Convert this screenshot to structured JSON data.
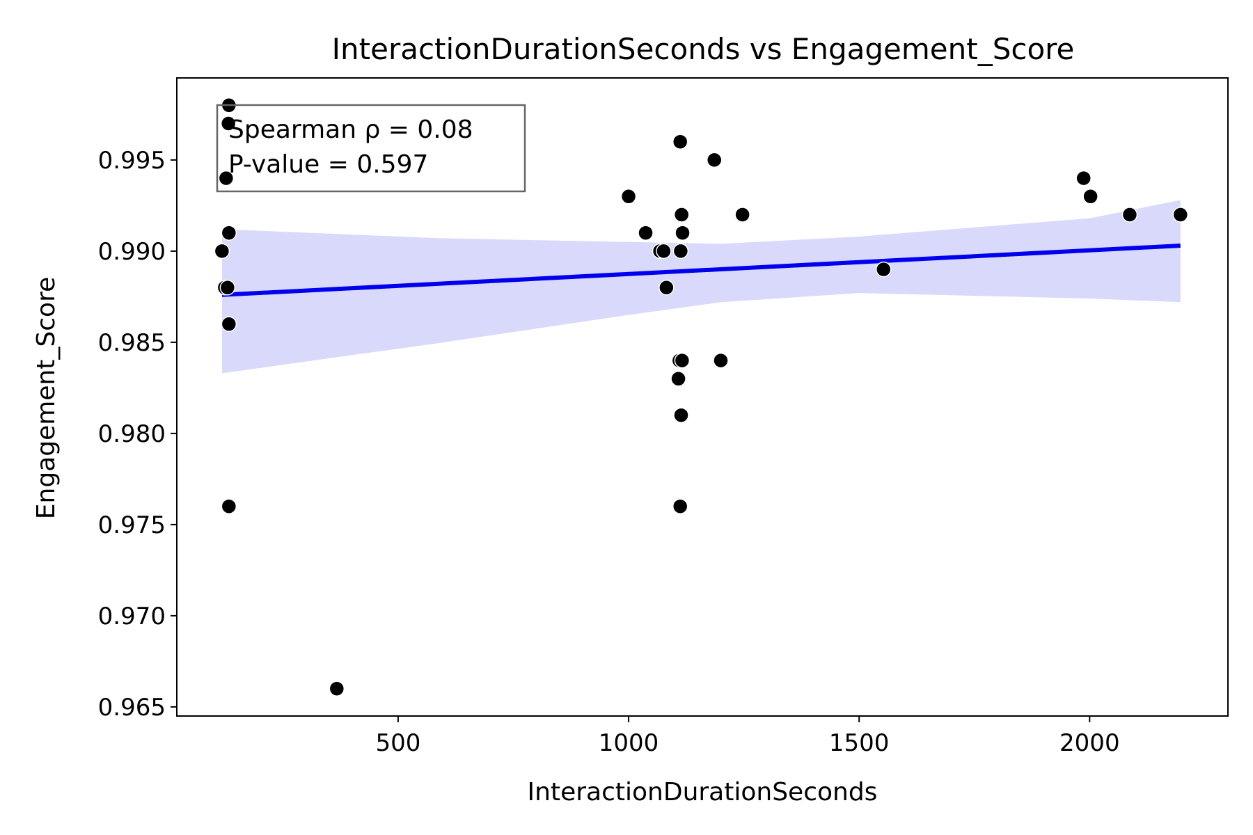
{
  "chart_data": {
    "type": "scatter",
    "title": "InteractionDurationSeconds vs Engagement_Score",
    "xlabel": "InteractionDurationSeconds",
    "ylabel": "Engagement_Score",
    "xlim": [
      20,
      2300
    ],
    "ylim": [
      0.9645,
      0.9995
    ],
    "xticks": [
      500,
      1000,
      1500,
      2000
    ],
    "yticks": [
      0.965,
      0.97,
      0.975,
      0.98,
      0.985,
      0.99,
      0.995
    ],
    "ytick_labels": [
      "0.965",
      "0.970",
      "0.975",
      "0.980",
      "0.985",
      "0.990",
      "0.995"
    ],
    "grid": false,
    "point_color": "#000000",
    "line_color": "#0000ee",
    "band_color": "#d9d9fb",
    "points": [
      {
        "x": 133,
        "y": 0.998
      },
      {
        "x": 132,
        "y": 0.997
      },
      {
        "x": 127,
        "y": 0.994
      },
      {
        "x": 133,
        "y": 0.991
      },
      {
        "x": 118,
        "y": 0.99
      },
      {
        "x": 124,
        "y": 0.988
      },
      {
        "x": 130,
        "y": 0.988
      },
      {
        "x": 133,
        "y": 0.986
      },
      {
        "x": 133,
        "y": 0.976
      },
      {
        "x": 367,
        "y": 0.966
      },
      {
        "x": 1000,
        "y": 0.993
      },
      {
        "x": 1037,
        "y": 0.991
      },
      {
        "x": 1068,
        "y": 0.99
      },
      {
        "x": 1076,
        "y": 0.99
      },
      {
        "x": 1082,
        "y": 0.988
      },
      {
        "x": 1112,
        "y": 0.996
      },
      {
        "x": 1115,
        "y": 0.992
      },
      {
        "x": 1117,
        "y": 0.991
      },
      {
        "x": 1113,
        "y": 0.99
      },
      {
        "x": 1110,
        "y": 0.984
      },
      {
        "x": 1116,
        "y": 0.984
      },
      {
        "x": 1108,
        "y": 0.983
      },
      {
        "x": 1114,
        "y": 0.981
      },
      {
        "x": 1112,
        "y": 0.976
      },
      {
        "x": 1186,
        "y": 0.995
      },
      {
        "x": 1247,
        "y": 0.992
      },
      {
        "x": 1200,
        "y": 0.984
      },
      {
        "x": 1553,
        "y": 0.989
      },
      {
        "x": 1987,
        "y": 0.994
      },
      {
        "x": 2002,
        "y": 0.993
      },
      {
        "x": 2087,
        "y": 0.992
      },
      {
        "x": 2197,
        "y": 0.992
      }
    ],
    "fit_line": {
      "x": [
        118,
        2197
      ],
      "y": [
        0.9876,
        0.9903
      ]
    },
    "confidence_band": {
      "x": [
        118,
        600,
        1000,
        1200,
        1500,
        2000,
        2197
      ],
      "upper": [
        0.9912,
        0.9907,
        0.9905,
        0.9904,
        0.9908,
        0.9918,
        0.9928
      ],
      "lower": [
        0.9833,
        0.985,
        0.9865,
        0.9872,
        0.9877,
        0.9874,
        0.9872
      ]
    },
    "annotation": {
      "lines": [
        "Spearman ρ = 0.08",
        "P-value = 0.597"
      ],
      "position": "top-left"
    }
  }
}
